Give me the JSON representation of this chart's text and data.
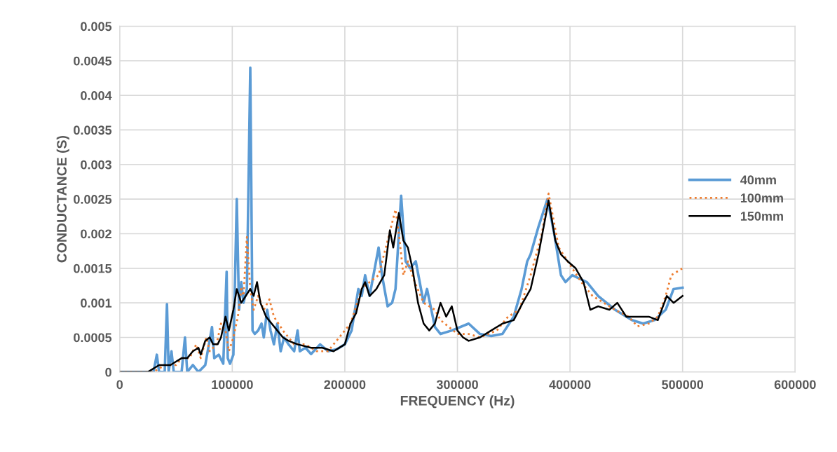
{
  "chart_data": {
    "type": "line",
    "xlabel": "FREQUENCY (Hz)",
    "ylabel": "CONDUCTANCE (S)",
    "xlim": [
      0,
      600000
    ],
    "xticks": [
      0,
      100000,
      200000,
      300000,
      400000,
      500000,
      600000
    ],
    "ylim": [
      0,
      0.005
    ],
    "yticks": [
      0,
      0.0005,
      0.001,
      0.0015,
      0.002,
      0.0025,
      0.003,
      0.0035,
      0.004,
      0.0045,
      0.005
    ],
    "grid": true,
    "legend": "right",
    "marker": "none",
    "series": [
      {
        "name": "40mm",
        "color": "#5b9bd5",
        "line_style": "solid",
        "x": [
          0,
          20000,
          30000,
          33000,
          35000,
          40000,
          42000,
          43500,
          46000,
          48000,
          55000,
          58000,
          60000,
          65000,
          70000,
          76000,
          82000,
          84000,
          88000,
          92000,
          95000,
          96000,
          98000,
          101000,
          104000,
          106000,
          108000,
          110000,
          113000,
          116000,
          118000,
          120000,
          123000,
          126000,
          128000,
          131000,
          134000,
          137000,
          140000,
          143000,
          146000,
          150000,
          155000,
          158000,
          160000,
          165000,
          170000,
          178000,
          185000,
          193000,
          200000,
          206000,
          212000,
          215000,
          218000,
          222000,
          230000,
          233000,
          238000,
          242000,
          245000,
          250000,
          254000,
          258000,
          263000,
          270000,
          273000,
          280000,
          285000,
          295000,
          310000,
          320000,
          330000,
          340000,
          350000,
          357000,
          362000,
          365000,
          372000,
          380000,
          386000,
          392000,
          396000,
          402000,
          415000,
          425000,
          440000,
          455000,
          465000,
          475000,
          485000,
          492000,
          500000
        ],
        "values": [
          0,
          0,
          0,
          0.00025,
          0,
          0,
          0.00098,
          0,
          0.0003,
          0,
          0,
          0.0005,
          0,
          0.0001,
          0,
          0.0001,
          0.00065,
          0.0002,
          0.00025,
          0.00012,
          0.00145,
          0.0002,
          0.00012,
          0.00025,
          0.0025,
          0.0009,
          0.0013,
          0.001,
          0.0012,
          0.0044,
          0.0006,
          0.00055,
          0.0006,
          0.0007,
          0.0005,
          0.0009,
          0.0006,
          0.0004,
          0.0007,
          0.0003,
          0.0005,
          0.0004,
          0.0003,
          0.0006,
          0.0003,
          0.00035,
          0.00026,
          0.0004,
          0.0003,
          0.00033,
          0.0004,
          0.0006,
          0.0012,
          0.0011,
          0.0014,
          0.0011,
          0.0018,
          0.0014,
          0.00095,
          0.001,
          0.0012,
          0.00255,
          0.0016,
          0.0015,
          0.0016,
          0.001,
          0.0012,
          0.00065,
          0.00055,
          0.0006,
          0.0007,
          0.00055,
          0.00052,
          0.00055,
          0.0008,
          0.0012,
          0.0016,
          0.0017,
          0.0021,
          0.0025,
          0.002,
          0.0014,
          0.0013,
          0.0014,
          0.0013,
          0.0011,
          0.0009,
          0.00075,
          0.0007,
          0.00075,
          0.0009,
          0.0012,
          0.00122
        ]
      },
      {
        "name": "100mm",
        "color": "#ed7d31",
        "line_style": "dotted",
        "x": [
          0,
          30000,
          40000,
          50000,
          55000,
          62000,
          68000,
          72000,
          77000,
          80000,
          86000,
          90000,
          94000,
          97000,
          101000,
          105000,
          108000,
          110000,
          113000,
          116000,
          119000,
          123000,
          128000,
          133000,
          137000,
          145000,
          155000,
          165000,
          175000,
          185000,
          195000,
          205000,
          215000,
          222000,
          230000,
          238000,
          245000,
          248000,
          252000,
          256000,
          262000,
          270000,
          280000,
          285000,
          300000,
          310000,
          320000,
          335000,
          345000,
          355000,
          365000,
          375000,
          381000,
          390000,
          398000,
          410000,
          420000,
          430000,
          440000,
          452000,
          460000,
          470000,
          478000,
          485000,
          490000,
          500000
        ],
        "values": [
          0,
          0,
          0.0001,
          0.0001,
          0.0002,
          0.0002,
          0.0004,
          0.0002,
          0.0005,
          0.0003,
          0.0004,
          0.0007,
          0.0006,
          0.0003,
          0.0005,
          0.0008,
          0.0012,
          0.0011,
          0.00195,
          0.0012,
          0.0009,
          0.0011,
          0.0009,
          0.00105,
          0.0008,
          0.0006,
          0.0004,
          0.0004,
          0.0003,
          0.0003,
          0.0005,
          0.0007,
          0.0012,
          0.0013,
          0.0014,
          0.0019,
          0.00235,
          0.002,
          0.0014,
          0.0016,
          0.0013,
          0.001,
          0.0009,
          0.00075,
          0.00055,
          0.00055,
          0.0005,
          0.0006,
          0.0008,
          0.0009,
          0.0014,
          0.002,
          0.00258,
          0.0018,
          0.0016,
          0.0013,
          0.0011,
          0.001,
          0.0009,
          0.0008,
          0.00066,
          0.0007,
          0.0008,
          0.0011,
          0.0014,
          0.0015
        ]
      },
      {
        "name": "150mm",
        "color": "#000000",
        "line_style": "solid",
        "x": [
          0,
          25000,
          35000,
          40000,
          45000,
          50000,
          55000,
          60000,
          65000,
          70000,
          72000,
          76000,
          80000,
          83000,
          87000,
          90000,
          94000,
          97000,
          101000,
          104000,
          108000,
          112000,
          116000,
          119000,
          122000,
          125000,
          130000,
          135000,
          140000,
          145000,
          150000,
          158000,
          170000,
          180000,
          190000,
          200000,
          205000,
          210000,
          215000,
          218000,
          222000,
          228000,
          235000,
          240000,
          243000,
          248000,
          252000,
          256000,
          260000,
          265000,
          270000,
          275000,
          280000,
          285000,
          290000,
          295000,
          300000,
          305000,
          310000,
          320000,
          330000,
          340000,
          350000,
          358000,
          365000,
          372000,
          381000,
          387000,
          392000,
          398000,
          405000,
          412000,
          418000,
          425000,
          435000,
          442000,
          450000,
          460000,
          470000,
          478000,
          486000,
          492000,
          500000
        ],
        "values": [
          0,
          0,
          0.0001,
          0.0001,
          0.0001,
          0.00015,
          0.0002,
          0.0002,
          0.0003,
          0.00035,
          0.00025,
          0.00045,
          0.0005,
          0.0004,
          0.0004,
          0.0005,
          0.0008,
          0.0006,
          0.0009,
          0.0012,
          0.001,
          0.0011,
          0.0012,
          0.0011,
          0.0013,
          0.001,
          0.0008,
          0.0007,
          0.0006,
          0.0005,
          0.00045,
          0.0004,
          0.00035,
          0.00035,
          0.0003,
          0.0004,
          0.0007,
          0.00085,
          0.0012,
          0.0013,
          0.0011,
          0.0012,
          0.0014,
          0.00205,
          0.0018,
          0.0023,
          0.0019,
          0.0018,
          0.0015,
          0.001,
          0.0007,
          0.0006,
          0.0007,
          0.001,
          0.0008,
          0.00095,
          0.0006,
          0.0005,
          0.00045,
          0.0005,
          0.0006,
          0.0007,
          0.00075,
          0.001,
          0.0012,
          0.0017,
          0.00248,
          0.0019,
          0.0017,
          0.0016,
          0.0015,
          0.0013,
          0.0009,
          0.00095,
          0.0009,
          0.001,
          0.0008,
          0.0008,
          0.0008,
          0.00075,
          0.0011,
          0.001,
          0.0011
        ]
      }
    ]
  }
}
